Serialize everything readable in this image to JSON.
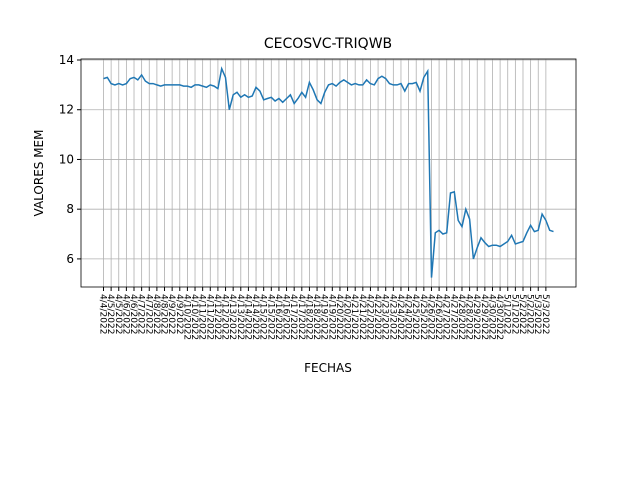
{
  "chart_data": {
    "type": "line",
    "title": "CECOSVC-TRIQWB",
    "xlabel": "FECHAS",
    "ylabel": "VALORES MEM",
    "categories": [
      "4/4/2022",
      null,
      "4/5/2022",
      null,
      "4/5/2022",
      null,
      "4/6/2022",
      null,
      "4/6/2022",
      null,
      "4/7/2022",
      null,
      "4/7/2022",
      null,
      "4/8/2022",
      null,
      "4/8/2022",
      null,
      "4/9/2022",
      null,
      "4/9/2022",
      null,
      "4/10/2022",
      null,
      "4/10/2022",
      null,
      "4/11/2022",
      null,
      "4/11/2022",
      null,
      "4/12/2022",
      null,
      "4/12/2022",
      null,
      "4/13/2022",
      null,
      "4/13/2022",
      null,
      "4/14/2022",
      null,
      "4/14/2022",
      null,
      "4/15/2022",
      null,
      "4/15/2022",
      null,
      "4/16/2022",
      null,
      "4/16/2022",
      null,
      "4/17/2022",
      null,
      "4/17/2022",
      null,
      "4/18/2022",
      null,
      "4/18/2022",
      null,
      "4/19/2022",
      null,
      "4/19/2022",
      null,
      "4/20/2022",
      null,
      "4/20/2022",
      null,
      "4/21/2022",
      null,
      "4/21/2022",
      null,
      "4/22/2022",
      null,
      "4/22/2022",
      null,
      "4/23/2022",
      null,
      "4/23/2022",
      null,
      "4/24/2022",
      null,
      "4/24/2022",
      null,
      "4/25/2022",
      null,
      "4/25/2022",
      null,
      "4/26/2022",
      null,
      "4/26/2022",
      null,
      "4/27/2022",
      null,
      "4/27/2022",
      null,
      "4/28/2022",
      null,
      "4/28/2022",
      null,
      "4/29/2022",
      null,
      "4/29/2022",
      null,
      "4/30/2022",
      null,
      "4/30/2022",
      null,
      "5/1/2022",
      null,
      "5/1/2022",
      null,
      "5/2/2022",
      null,
      "5/2/2022",
      null,
      "5/3/2022",
      null,
      "5/3/2022",
      null,
      null
    ],
    "series": [
      {
        "name": "VALORES MEM",
        "color": "#1f77b4",
        "values": [
          13.25,
          13.3,
          13.05,
          13.0,
          13.05,
          13.0,
          13.05,
          13.25,
          13.3,
          13.2,
          13.4,
          13.15,
          13.05,
          13.05,
          13.0,
          12.95,
          13.0,
          13.0,
          13.0,
          13.0,
          13.0,
          12.95,
          12.95,
          12.9,
          13.0,
          13.0,
          12.95,
          12.9,
          13.0,
          12.95,
          12.85,
          13.65,
          13.3,
          12.0,
          12.6,
          12.7,
          12.5,
          12.6,
          12.5,
          12.55,
          12.9,
          12.75,
          12.4,
          12.45,
          12.5,
          12.35,
          12.45,
          12.3,
          12.45,
          12.6,
          12.25,
          12.45,
          12.7,
          12.5,
          13.1,
          12.8,
          12.4,
          12.25,
          12.7,
          13.0,
          13.05,
          12.95,
          13.1,
          13.2,
          13.1,
          13.0,
          13.05,
          13.0,
          13.0,
          13.2,
          13.05,
          13.0,
          13.25,
          13.35,
          13.25,
          13.05,
          13.0,
          13.0,
          13.05,
          12.75,
          13.05,
          13.05,
          13.1,
          12.75,
          13.3,
          13.55,
          5.25,
          7.05,
          7.15,
          7.0,
          7.05,
          8.65,
          8.7,
          7.55,
          7.3,
          8.0,
          7.6,
          6.0,
          6.45,
          6.85,
          6.65,
          6.5,
          6.55,
          6.55,
          6.5,
          6.6,
          6.7,
          6.95,
          6.6,
          6.65,
          6.7,
          7.05,
          7.35,
          7.1,
          7.15,
          7.8,
          7.55,
          7.15,
          7.1
        ]
      }
    ],
    "ylim": [
      4.87,
      14.04
    ],
    "yticks": [
      6,
      8,
      10,
      12,
      14
    ],
    "grid": true
  }
}
